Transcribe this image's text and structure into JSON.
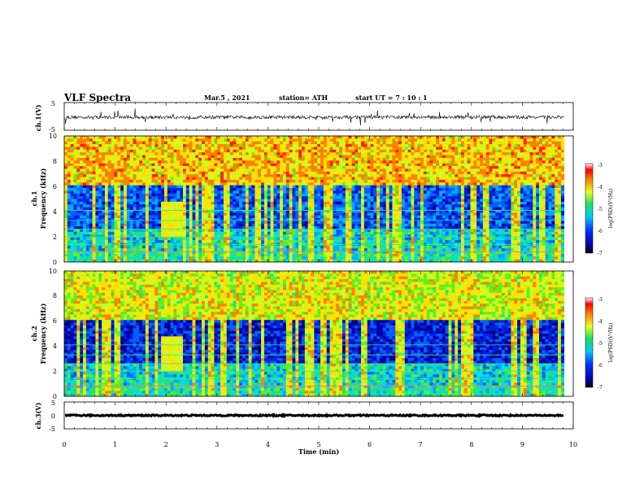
{
  "header": {
    "title": "VLF Spectra",
    "date": "Mar.5 , 2021",
    "station": "station= ATH",
    "start": "start UT = 7 : 10 : 1"
  },
  "chart_data": [
    {
      "type": "line",
      "panel": "ch1-waveform",
      "ylabel": "ch.1(V)",
      "ylim": [
        -5,
        5
      ],
      "yticks": [
        "5",
        "-5"
      ],
      "xlim": [
        0,
        10
      ],
      "description_values": {
        "baseline_V": -0.3,
        "noise_amplitude_V": 1.2
      }
    },
    {
      "type": "heatmap",
      "panel": "ch1-spectrogram",
      "ylabel_line1": "ch.1",
      "ylabel_line2": "Frequency (kHz)",
      "ylim": [
        0,
        10
      ],
      "yticks": [
        "0",
        "2",
        "4",
        "6",
        "8",
        "10"
      ],
      "xlim": [
        0,
        10
      ],
      "colorbar": {
        "label": "log(PSD)(V²/Hz)",
        "min": -7,
        "max": -3,
        "ticks": [
          "-3",
          "-4",
          "-5",
          "-6",
          "-7"
        ]
      }
    },
    {
      "type": "heatmap",
      "panel": "ch2-spectrogram",
      "ylabel_line1": "ch.2",
      "ylabel_line2": "Frequency (kHz)",
      "ylim": [
        0,
        10
      ],
      "yticks": [
        "0",
        "2",
        "4",
        "6",
        "8",
        "10"
      ],
      "xlim": [
        0,
        10
      ],
      "colorbar": {
        "label": "log(PSD)(V²/Hz)",
        "min": -7,
        "max": -3,
        "ticks": [
          "-3",
          "-4",
          "-5",
          "-6",
          "-7"
        ]
      }
    },
    {
      "type": "line",
      "panel": "ch3-waveform",
      "ylabel": "ch.3(V)",
      "ylim": [
        -5,
        5
      ],
      "yticks": [
        "5",
        "0",
        "-5"
      ],
      "xlim": [
        0,
        10
      ],
      "description_values": {
        "baseline_V": 0,
        "noise_amplitude_V": 0.5
      }
    }
  ],
  "xaxis": {
    "label": "Time (min)",
    "ticks": [
      "0",
      "1",
      "2",
      "3",
      "4",
      "5",
      "6",
      "7",
      "8",
      "9",
      "10"
    ],
    "data_end_min": 9.82
  }
}
